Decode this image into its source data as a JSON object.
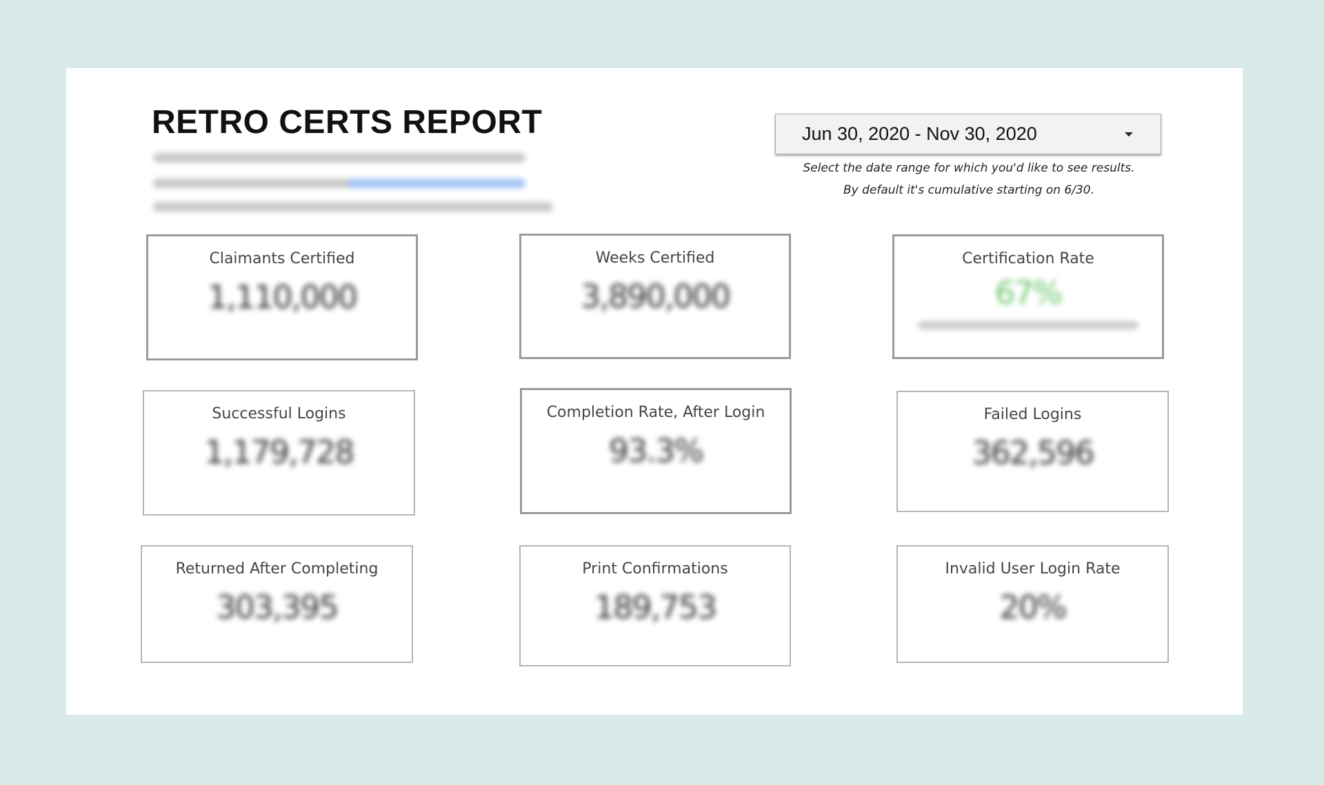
{
  "header": {
    "title": "RETRO CERTS REPORT"
  },
  "date_filter": {
    "value": "Jun 30, 2020 - Nov 30, 2020",
    "help_line1": "Select the date range for which you'd like to see results.",
    "help_line2": "By default it's cumulative starting on 6/30."
  },
  "colors": {
    "background": "#d8ebea",
    "rate_green": "#6cc46c",
    "link_blue": "#8fb6f0"
  },
  "cards": [
    {
      "label": "Claimants Certified",
      "value": "1,110,000"
    },
    {
      "label": "Weeks Certified",
      "value": "3,890,000"
    },
    {
      "label": "Certification Rate",
      "value": "67%"
    },
    {
      "label": "Successful Logins",
      "value": "1,179,728"
    },
    {
      "label": "Completion Rate, After Login",
      "value": "93.3%"
    },
    {
      "label": "Failed Logins",
      "value": "362,596"
    },
    {
      "label": "Returned After Completing",
      "value": "303,395"
    },
    {
      "label": "Print Confirmations",
      "value": "189,753"
    },
    {
      "label": "Invalid User Login Rate",
      "value": "20%"
    }
  ]
}
